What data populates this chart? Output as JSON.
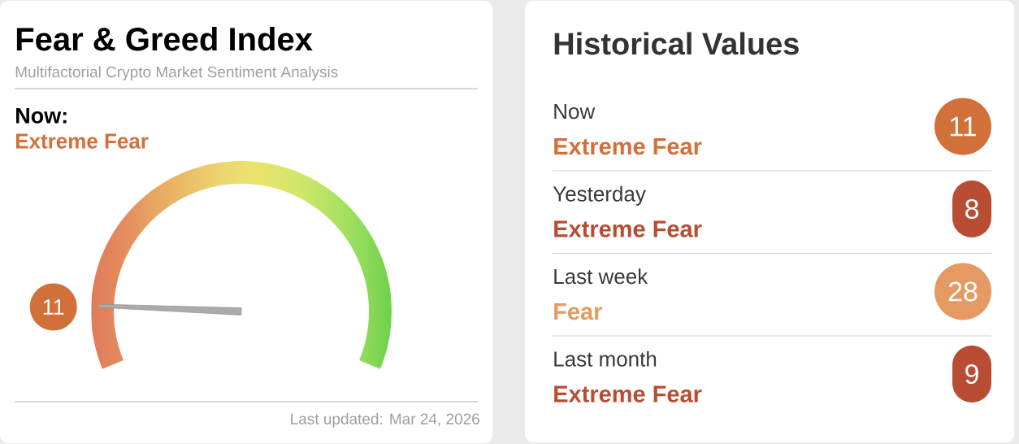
{
  "chart_data": [
    {
      "type": "other",
      "title": "Fear & Greed Index",
      "subtitle": "Multifactorial Crypto Market Sentiment Analysis",
      "values": [
        11
      ],
      "colors": [
        "#d2703a"
      ],
      "data_labels": true,
      "annotations": [
        "Now:",
        "Extreme Fear",
        "Last updated: Mar 24, 2026"
      ]
    },
    {
      "type": "other",
      "title": "Historical Values",
      "values": [
        11,
        8,
        28,
        9
      ],
      "colors": [
        "#d2703a",
        "#b84d33",
        "#e49a62",
        "#b84d33"
      ],
      "data_labels": true,
      "annotations": [
        "Now",
        "Extreme Fear",
        "Yesterday",
        "Extreme Fear",
        "Last week",
        "Fear",
        "Last month",
        "Extreme Fear"
      ]
    }
  ]
}
